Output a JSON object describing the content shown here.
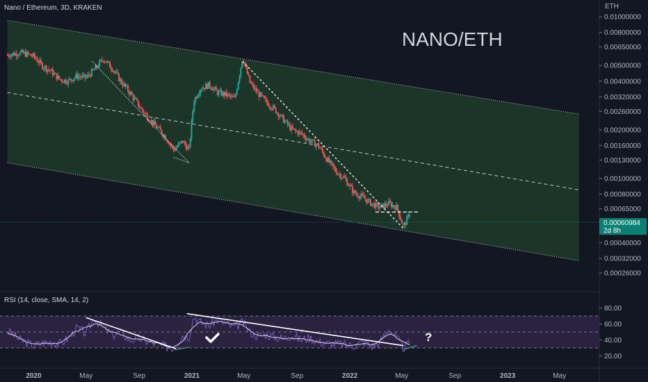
{
  "header": {
    "symbol_line": "Nano / Ethereum, 3D, KRAKEN",
    "currency_label": "ETH",
    "watermark": "NANO/ETH",
    "rsi_label": "RSI (14, close, SMA, 14, 2)"
  },
  "price_badge": {
    "value": "0.00060984",
    "countdown": "2d 8h"
  },
  "annotations": {
    "rsi_question": "?"
  },
  "colors": {
    "background": "#131722",
    "channel_fill": "#1f3b2a",
    "candle_up": "#26a69a",
    "candle_down": "#ef5350",
    "rsi_line": "#7e57c2",
    "rsi_band": "#2a2340",
    "badge": "#0a7f74"
  },
  "chart_data": [
    {
      "type": "candlestick",
      "title": "Nano / Ethereum, 3D, KRAKEN",
      "y_scale": "log",
      "ylim": [
        0.00022,
        0.0115
      ],
      "x_range": [
        "2019-10-15",
        "2023-08-01"
      ],
      "x_tick_labels": [
        "2020",
        "May",
        "Sep",
        "2021",
        "May",
        "Sep",
        "2022",
        "May",
        "Sep",
        "2023",
        "May"
      ],
      "y_tick_labels": [
        "0.01000000",
        "0.00800000",
        "0.00650000",
        "0.00500000",
        "0.00400000",
        "0.00320000",
        "0.00260000",
        "0.00200000",
        "0.00160000",
        "0.00130000",
        "0.00100000",
        "0.00080000",
        "0.00065000",
        "0.00050000",
        "0.00040000",
        "0.00032000",
        "0.00026000"
      ],
      "last_price": 0.00060984,
      "close_series": {
        "dates": [
          "2019-11-01",
          "2019-12-01",
          "2020-01-01",
          "2020-01-20",
          "2020-02-10",
          "2020-03-01",
          "2020-03-20",
          "2020-04-10",
          "2020-05-01",
          "2020-05-20",
          "2020-06-10",
          "2020-07-01",
          "2020-07-20",
          "2020-08-10",
          "2020-09-01",
          "2020-09-20",
          "2020-10-10",
          "2020-11-01",
          "2020-11-20",
          "2020-12-10",
          "2020-12-25",
          "2021-01-05",
          "2021-01-20",
          "2021-02-10",
          "2021-03-01",
          "2021-03-20",
          "2021-04-10",
          "2021-04-28",
          "2021-05-15",
          "2021-06-01",
          "2021-06-20",
          "2021-07-10",
          "2021-08-01",
          "2021-08-20",
          "2021-09-10",
          "2021-10-01",
          "2021-10-20",
          "2021-11-10",
          "2021-12-01",
          "2021-12-20",
          "2022-01-10",
          "2022-02-01",
          "2022-02-20",
          "2022-03-10",
          "2022-04-01",
          "2022-04-20",
          "2022-05-05",
          "2022-05-20"
        ],
        "values": [
          0.0058,
          0.006,
          0.0057,
          0.005,
          0.0046,
          0.0041,
          0.004,
          0.0043,
          0.0042,
          0.0047,
          0.0055,
          0.0048,
          0.004,
          0.0034,
          0.0028,
          0.0024,
          0.0021,
          0.0018,
          0.0015,
          0.0017,
          0.0015,
          0.003,
          0.0036,
          0.0038,
          0.0034,
          0.0033,
          0.0031,
          0.0056,
          0.0039,
          0.0034,
          0.003,
          0.0027,
          0.0023,
          0.002,
          0.0019,
          0.0017,
          0.0016,
          0.0013,
          0.0011,
          0.001,
          0.00082,
          0.00076,
          0.0007,
          0.00066,
          0.0007,
          0.00066,
          0.0005,
          0.00061
        ]
      },
      "channel": {
        "upper": {
          "start": [
            "2019-11-01",
            0.0095
          ],
          "end": [
            "2023-06-15",
            0.0025
          ]
        },
        "middle": {
          "start": [
            "2019-11-01",
            0.0034
          ],
          "end": [
            "2023-06-15",
            0.00085
          ]
        },
        "lower": {
          "start": [
            "2019-11-01",
            0.00125
          ],
          "end": [
            "2023-06-15",
            0.00031
          ]
        }
      },
      "annotations": [
        {
          "type": "trendline",
          "from": [
            "2020-05-15",
            0.0053
          ],
          "to": [
            "2020-12-25",
            0.00125
          ]
        },
        {
          "type": "trendline",
          "from": [
            "2020-11-20",
            0.00135
          ],
          "to": [
            "2020-12-25",
            0.00125
          ]
        },
        {
          "type": "dashed_trendline",
          "from": [
            "2021-04-28",
            0.0053
          ],
          "to": [
            "2022-05-05",
            0.00049
          ]
        },
        {
          "type": "support_line",
          "from": [
            "2022-03-01",
            0.00062
          ],
          "to": [
            "2022-06-10",
            0.00062
          ]
        }
      ]
    },
    {
      "type": "line",
      "title": "RSI (14, close, SMA, 14, 2)",
      "ylim": [
        10,
        90
      ],
      "y_tick_labels": [
        "80.00",
        "60.00",
        "40.00",
        "20.00"
      ],
      "band": [
        30,
        70
      ],
      "midline": 50,
      "series": [
        {
          "name": "RSI",
          "dates": [
            "2019-11-01",
            "2019-12-01",
            "2020-01-01",
            "2020-01-20",
            "2020-02-10",
            "2020-03-01",
            "2020-03-20",
            "2020-04-10",
            "2020-05-01",
            "2020-05-20",
            "2020-06-10",
            "2020-07-01",
            "2020-07-20",
            "2020-08-10",
            "2020-09-01",
            "2020-09-20",
            "2020-10-10",
            "2020-11-01",
            "2020-11-20",
            "2020-12-10",
            "2020-12-25",
            "2021-01-05",
            "2021-01-20",
            "2021-02-10",
            "2021-03-01",
            "2021-03-20",
            "2021-04-10",
            "2021-04-28",
            "2021-05-15",
            "2021-06-01",
            "2021-06-20",
            "2021-07-10",
            "2021-08-01",
            "2021-08-20",
            "2021-09-10",
            "2021-10-01",
            "2021-10-20",
            "2021-11-10",
            "2021-12-01",
            "2021-12-20",
            "2022-01-10",
            "2022-02-01",
            "2022-02-20",
            "2022-03-10",
            "2022-04-01",
            "2022-04-20",
            "2022-05-05",
            "2022-05-20"
          ],
          "values": [
            52,
            40,
            33,
            36,
            38,
            35,
            42,
            55,
            48,
            68,
            55,
            46,
            50,
            40,
            42,
            38,
            35,
            32,
            30,
            46,
            44,
            70,
            62,
            58,
            66,
            60,
            56,
            62,
            50,
            45,
            47,
            44,
            42,
            46,
            40,
            43,
            38,
            36,
            35,
            34,
            33,
            38,
            32,
            36,
            54,
            42,
            30,
            36
          ]
        }
      ],
      "annotations": [
        {
          "type": "trendline",
          "from": [
            "2020-05-01",
            68
          ],
          "to": [
            "2020-11-25",
            29
          ]
        },
        {
          "type": "trendline",
          "from": [
            "2020-12-20",
            73
          ],
          "to": [
            "2022-05-05",
            33
          ]
        },
        {
          "type": "divergence_line",
          "from": [
            "2020-11-25",
            28
          ],
          "to": [
            "2020-12-25",
            31
          ]
        },
        {
          "type": "divergence_line",
          "from": [
            "2022-05-05",
            28
          ],
          "to": [
            "2022-06-05",
            33
          ]
        }
      ]
    }
  ]
}
